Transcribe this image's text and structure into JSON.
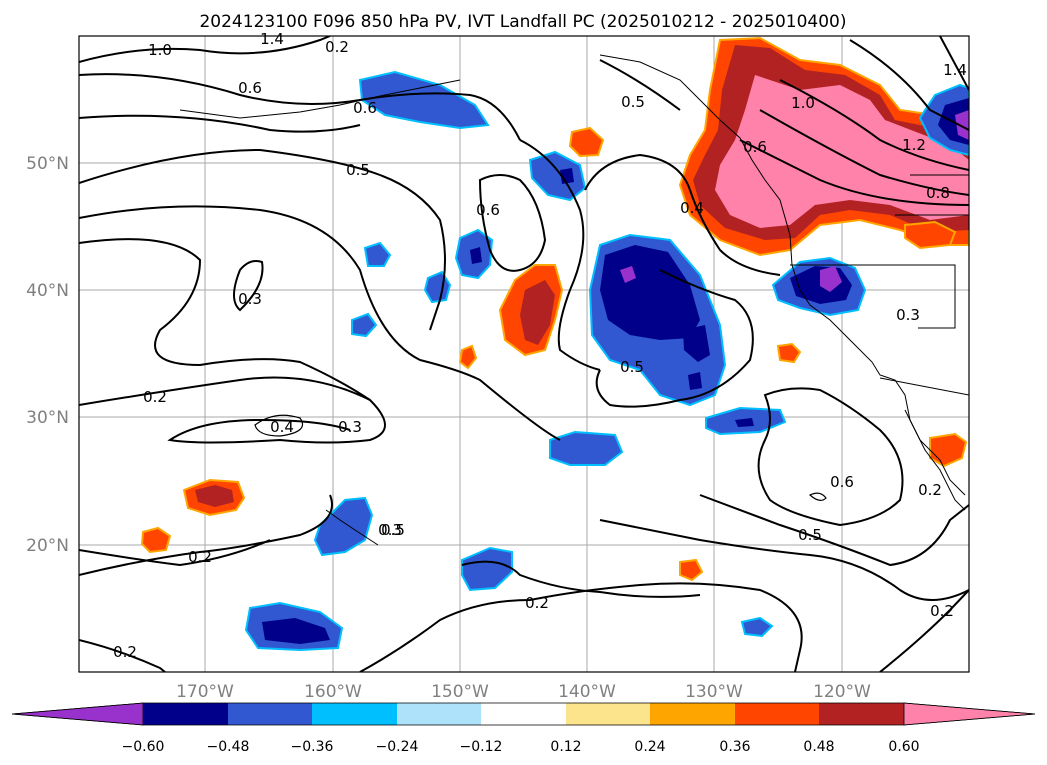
{
  "title": "2024123100 F096 850 hPa PV, IVT Landfall PC (2025010212 - 2025010400)",
  "map": {
    "lat_labels": [
      "50°N",
      "40°N",
      "30°N",
      "20°N"
    ],
    "lon_labels": [
      "170°W",
      "160°W",
      "150°W",
      "140°W",
      "130°W",
      "120°W"
    ],
    "contour_labels": [
      "1.0",
      "0.6",
      "0.6",
      "0.5",
      "0.5",
      "0.6",
      "0.3",
      "0.2",
      "0.4",
      "0.3",
      "0.2",
      "0.3",
      "0.2",
      "0.2",
      "0.5",
      "0.4",
      "0.6",
      "1.0",
      "1.4",
      "1.2",
      "0.8",
      "0.3",
      "0.5",
      "0.6",
      "0.5",
      "0.2",
      "0.2",
      "0.2",
      "1.4"
    ],
    "colors": {
      "cb_neg4": "#9932CC",
      "cb_neg3": "#00008B",
      "cb_neg2": "#3158D0",
      "cb_neg1": "#00BFFF",
      "cb_neg0": "#ADE2FA",
      "cb_zero": "#FFFFFF",
      "cb_pos0": "#FCE48D",
      "cb_pos1": "#FFA500",
      "cb_pos2": "#FF4500",
      "cb_pos3": "#B22222",
      "cb_pos4": "#FF82AB"
    }
  },
  "colorbar": {
    "ticks": [
      "−0.60",
      "−0.48",
      "−0.36",
      "−0.24",
      "−0.12",
      "0.12",
      "0.24",
      "0.36",
      "0.48",
      "0.60"
    ],
    "colors": [
      "#9932CC",
      "#00008B",
      "#3158D0",
      "#00BFFF",
      "#ADE2FA",
      "#FFFFFF",
      "#FCE48D",
      "#FFA500",
      "#FF4500",
      "#B22222",
      "#FF82AB"
    ]
  }
}
